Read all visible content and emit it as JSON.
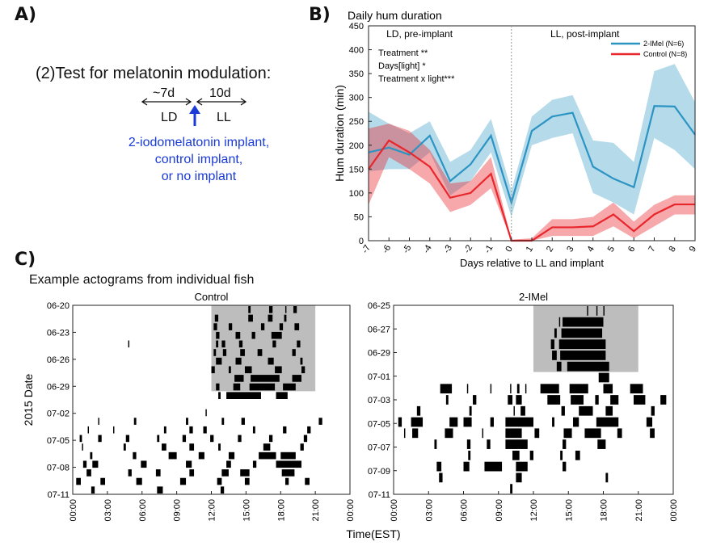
{
  "panels": {
    "a": "A)",
    "b": "B)",
    "c": "C)"
  },
  "panelA": {
    "title": "(2)Test for melatonin modulation:",
    "duration_ld": "~7d",
    "duration_ll": "10d",
    "phase_ld": "LD",
    "phase_ll": "LL",
    "implant_lines": [
      "2-iodomelatonin implant,",
      "control implant,",
      "or no implant"
    ],
    "colors": {
      "implant_text": "#1a3ad8",
      "arrow": "#1a3ad8"
    }
  },
  "chart_data": [
    {
      "type": "line",
      "title": "Daily hum duration",
      "xlabel": "Days relative to LL and implant",
      "ylabel": "Hum duration (min)",
      "x": [
        -7,
        -6,
        -5,
        -4,
        -3,
        -2,
        -1,
        0,
        1,
        2,
        3,
        4,
        5,
        6,
        7,
        8,
        9
      ],
      "xlim": [
        -7,
        9
      ],
      "ylim": [
        0,
        450
      ],
      "yticks": [
        0,
        50,
        100,
        150,
        200,
        250,
        300,
        350,
        400,
        450
      ],
      "region_labels": [
        "LD, pre-implant",
        "LL, post-implant"
      ],
      "stats": [
        "Treatment **",
        "Days[light] *",
        "Treatment x light***"
      ],
      "legend_position": "top-right",
      "series": [
        {
          "name": "2-IMel (N=6)",
          "color": "#2b94c3",
          "values": [
            185,
            195,
            180,
            220,
            125,
            160,
            220,
            80,
            230,
            260,
            268,
            155,
            130,
            112,
            282,
            281,
            222
          ],
          "lower": [
            145,
            150,
            150,
            185,
            95,
            125,
            185,
            50,
            200,
            215,
            225,
            100,
            80,
            55,
            215,
            190,
            150
          ],
          "upper": [
            270,
            245,
            225,
            250,
            165,
            190,
            255,
            105,
            260,
            295,
            305,
            210,
            205,
            165,
            355,
            370,
            290
          ]
        },
        {
          "name": "Control (N=8)",
          "color": "#e8262c",
          "values": [
            150,
            210,
            185,
            155,
            90,
            100,
            140,
            0,
            0,
            28,
            28,
            30,
            55,
            20,
            55,
            76,
            76
          ],
          "lower": [
            75,
            175,
            150,
            120,
            60,
            75,
            110,
            0,
            0,
            10,
            10,
            10,
            30,
            5,
            30,
            55,
            55
          ],
          "upper": [
            235,
            245,
            230,
            190,
            120,
            125,
            175,
            2,
            5,
            45,
            45,
            50,
            80,
            40,
            75,
            95,
            95
          ]
        }
      ]
    },
    {
      "type": "heatmap",
      "title": "Control",
      "ylabel": "2015 Date",
      "xlabel": "Time(EST)",
      "xticks": [
        "00:00",
        "03:00",
        "06:00",
        "09:00",
        "12:00",
        "15:00",
        "18:00",
        "21:00",
        "00:00"
      ],
      "yticks": [
        "06-20",
        "06-23",
        "06-26",
        "06-29",
        "07-02",
        "07-05",
        "07-08",
        "07-11"
      ],
      "row_count": 22,
      "ll_rows": 10,
      "ll_hours": [
        12,
        21
      ],
      "shade_color": "#bdbdbd",
      "bout_color": "#000000",
      "bouts": [
        [
          [
            15.2,
            15.4
          ],
          [
            17.0,
            17.3
          ],
          [
            18.4,
            18.5
          ],
          [
            19.1,
            19.4
          ]
        ],
        [
          [
            12.3,
            12.6
          ],
          [
            15.2,
            15.6
          ],
          [
            16.9,
            17.3
          ],
          [
            18.3,
            18.5
          ]
        ],
        [
          [
            12.2,
            12.5
          ],
          [
            13.5,
            13.8
          ],
          [
            16.3,
            16.6
          ],
          [
            17.9,
            18.2
          ],
          [
            19.2,
            19.6
          ]
        ],
        [
          [
            12.4,
            12.7
          ],
          [
            14.1,
            14.5
          ],
          [
            15.5,
            15.8
          ],
          [
            17.2,
            18.1
          ]
        ],
        [
          [
            4.8,
            4.9
          ],
          [
            12.4,
            12.6
          ],
          [
            12.9,
            13.2
          ],
          [
            14.4,
            14.7
          ],
          [
            17.3,
            17.6
          ],
          [
            19.4,
            19.7
          ]
        ],
        [
          [
            12.2,
            12.4
          ],
          [
            13.0,
            13.3
          ],
          [
            14.5,
            14.9
          ],
          [
            16.0,
            16.4
          ],
          [
            19.0,
            19.3
          ]
        ],
        [
          [
            12.4,
            12.9
          ],
          [
            14.1,
            14.6
          ],
          [
            16.9,
            17.4
          ],
          [
            19.7,
            19.9
          ]
        ],
        [
          [
            12.0,
            12.3
          ],
          [
            13.5,
            13.7
          ],
          [
            14.9,
            15.5
          ],
          [
            17.5,
            18.1
          ],
          [
            19.8,
            20.1
          ]
        ],
        [
          [
            14.0,
            14.8
          ],
          [
            15.4,
            17.9
          ],
          [
            19.0,
            19.8
          ]
        ],
        [
          [
            12.4,
            12.7
          ],
          [
            13.9,
            14.5
          ],
          [
            15.3,
            17.5
          ],
          [
            18.2,
            19.3
          ]
        ],
        [
          [
            12.6,
            12.8
          ],
          [
            13.3,
            16.3
          ],
          [
            17.6,
            18.6
          ]
        ],
        [],
        [
          [
            11.5,
            11.6
          ]
        ],
        [
          [
            2.2,
            2.3
          ],
          [
            5.3,
            5.5
          ],
          [
            9.8,
            10.0
          ],
          [
            12.9,
            13.1
          ],
          [
            14.6,
            14.9
          ],
          [
            21.3,
            21.6
          ]
        ],
        [
          [
            1.3,
            1.4
          ],
          [
            3.5,
            3.6
          ],
          [
            7.9,
            8.1
          ],
          [
            10.1,
            10.4
          ],
          [
            11.3,
            11.6
          ],
          [
            15.6,
            15.8
          ],
          [
            18.2,
            18.5
          ],
          [
            20.3,
            20.6
          ]
        ],
        [
          [
            0.6,
            0.8
          ],
          [
            2.2,
            2.5
          ],
          [
            4.6,
            4.9
          ],
          [
            7.3,
            7.5
          ],
          [
            9.5,
            9.8
          ],
          [
            11.9,
            12.2
          ],
          [
            14.3,
            14.6
          ],
          [
            17.0,
            17.3
          ],
          [
            20.0,
            20.3
          ]
        ],
        [
          [
            0.8,
            0.9
          ],
          [
            4.4,
            4.6
          ],
          [
            7.7,
            8.1
          ],
          [
            10.1,
            10.5
          ],
          [
            12.6,
            12.8
          ],
          [
            16.5,
            17.1
          ],
          [
            19.7,
            20.0
          ]
        ],
        [
          [
            1.5,
            1.7
          ],
          [
            5.2,
            5.5
          ],
          [
            8.3,
            9.0
          ],
          [
            10.9,
            11.4
          ],
          [
            13.5,
            14.0
          ],
          [
            16.1,
            17.6
          ],
          [
            18.0,
            19.3
          ]
        ],
        [
          [
            0.9,
            1.2
          ],
          [
            1.7,
            2.2
          ],
          [
            5.9,
            6.4
          ],
          [
            9.8,
            10.3
          ],
          [
            13.3,
            13.7
          ],
          [
            15.6,
            15.9
          ],
          [
            17.6,
            19.8
          ]
        ],
        [
          [
            1.2,
            1.6
          ],
          [
            4.8,
            5.1
          ],
          [
            7.2,
            7.6
          ],
          [
            10.1,
            10.5
          ],
          [
            12.9,
            13.5
          ],
          [
            14.5,
            15.3
          ],
          [
            18.1,
            19.2
          ]
        ],
        [
          [
            0.3,
            0.7
          ],
          [
            2.4,
            2.8
          ],
          [
            5.5,
            6.0
          ],
          [
            9.3,
            9.8
          ],
          [
            12.5,
            12.9
          ],
          [
            14.9,
            15.3
          ],
          [
            18.4,
            18.7
          ],
          [
            20.1,
            20.5
          ]
        ],
        [
          [
            1.6,
            1.9
          ],
          [
            7.3,
            7.8
          ],
          [
            12.8,
            13.1
          ]
        ]
      ]
    },
    {
      "type": "heatmap",
      "title": "2-IMel",
      "xlabel": "Time(EST)",
      "xticks": [
        "00:00",
        "03:00",
        "06:00",
        "09:00",
        "12:00",
        "15:00",
        "18:00",
        "21:00",
        "00:00"
      ],
      "yticks": [
        "06-25",
        "06-27",
        "06-29",
        "07-01",
        "07-03",
        "07-05",
        "07-07",
        "07-09",
        "07-11"
      ],
      "row_count": 17,
      "ll_rows": 6,
      "ll_hours": [
        12,
        21
      ],
      "shade_color": "#bdbdbd",
      "bout_color": "#000000",
      "bouts": [
        [
          [
            16.6,
            16.7
          ],
          [
            17.4,
            17.5
          ],
          [
            18.0,
            18.1
          ]
        ],
        [
          [
            14.2,
            14.3
          ],
          [
            14.5,
            18.0
          ]
        ],
        [
          [
            13.8,
            14.0
          ],
          [
            14.4,
            17.9
          ]
        ],
        [
          [
            13.5,
            13.8
          ],
          [
            14.2,
            18.2
          ]
        ],
        [
          [
            13.6,
            14.0
          ],
          [
            14.3,
            18.2
          ]
        ],
        [
          [
            14.0,
            14.4
          ],
          [
            14.9,
            18.5
          ]
        ],
        [
          [
            17.6,
            18.5
          ],
          [
            24.6,
            25.0
          ]
        ],
        [
          [
            4.0,
            5.0
          ],
          [
            6.3,
            6.4
          ],
          [
            8.3,
            8.4
          ],
          [
            10.0,
            10.1
          ],
          [
            10.6,
            10.8
          ],
          [
            11.3,
            11.4
          ],
          [
            12.6,
            14.2
          ],
          [
            15.1,
            16.7
          ],
          [
            18.0,
            18.8
          ],
          [
            20.3,
            21.4
          ]
        ],
        [
          [
            4.5,
            4.7
          ],
          [
            6.8,
            7.1
          ],
          [
            9.8,
            10.2
          ],
          [
            10.5,
            11.0
          ],
          [
            13.2,
            14.3
          ],
          [
            15.2,
            16.3
          ],
          [
            17.3,
            17.6
          ],
          [
            18.6,
            19.3
          ],
          [
            20.6,
            21.6
          ],
          [
            22.9,
            23.4
          ]
        ],
        [
          [
            2.0,
            2.3
          ],
          [
            6.5,
            6.7
          ],
          [
            10.3,
            10.4
          ],
          [
            10.9,
            11.3
          ],
          [
            14.4,
            14.7
          ],
          [
            15.9,
            17.1
          ],
          [
            18.2,
            18.8
          ],
          [
            22.1,
            22.4
          ]
        ],
        [
          [
            0.4,
            0.7
          ],
          [
            1.5,
            2.5
          ],
          [
            4.8,
            5.5
          ],
          [
            6.0,
            6.7
          ],
          [
            8.3,
            8.6
          ],
          [
            9.6,
            12.0
          ],
          [
            13.6,
            13.8
          ],
          [
            15.4,
            15.9
          ],
          [
            17.4,
            19.3
          ],
          [
            21.7,
            22.2
          ]
        ],
        [
          [
            0.9,
            1.0
          ],
          [
            1.6,
            2.1
          ],
          [
            4.4,
            5.1
          ],
          [
            7.6,
            7.7
          ],
          [
            9.6,
            11.0
          ],
          [
            12.1,
            12.5
          ],
          [
            14.6,
            15.3
          ],
          [
            16.4,
            17.8
          ],
          [
            19.2,
            19.6
          ],
          [
            22.0,
            22.4
          ]
        ],
        [
          [
            3.5,
            3.7
          ],
          [
            6.3,
            6.6
          ],
          [
            8.0,
            8.3
          ],
          [
            9.6,
            11.5
          ],
          [
            14.5,
            14.8
          ],
          [
            17.5,
            18.2
          ]
        ],
        [
          [
            6.4,
            6.6
          ],
          [
            10.2,
            10.8
          ],
          [
            11.7,
            12.0
          ],
          [
            14.3,
            14.5
          ],
          [
            15.6,
            16.0
          ]
        ],
        [
          [
            3.7,
            4.1
          ],
          [
            6.0,
            6.5
          ],
          [
            7.8,
            9.3
          ],
          [
            10.5,
            11.5
          ],
          [
            14.5,
            14.8
          ]
        ],
        [
          [
            3.9,
            4.2
          ],
          [
            10.5,
            11.0
          ],
          [
            18.2,
            18.4
          ]
        ],
        [
          [
            10.0,
            10.2
          ]
        ]
      ]
    }
  ],
  "panelC": {
    "subtitle": "Example actograms from individual fish"
  }
}
